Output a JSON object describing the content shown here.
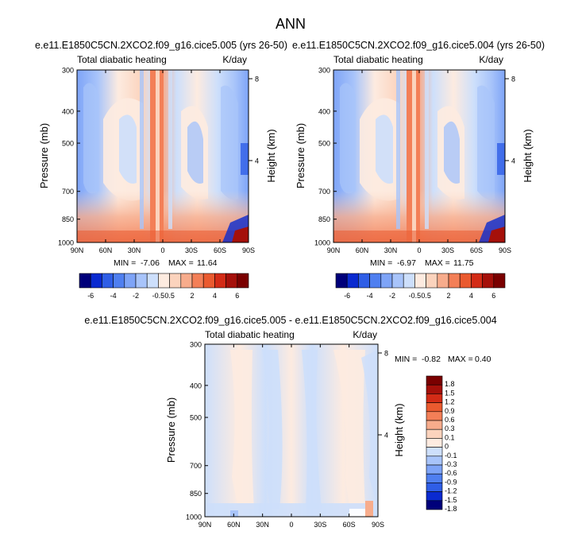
{
  "figure_title": "ANN",
  "colors": {
    "palette_main": [
      "#00007a",
      "#0a2ad0",
      "#2f5ee6",
      "#4f7ff0",
      "#7ea4f7",
      "#a8c4fa",
      "#cddffb",
      "#fdebe0",
      "#fbd3bd",
      "#f7ac8c",
      "#f37f57",
      "#ea5a2f",
      "#d32b16",
      "#a5100a",
      "#7a0000"
    ],
    "palette_diff": [
      "#7a0000",
      "#a5100a",
      "#d32b16",
      "#ea5a2f",
      "#f37f57",
      "#f7ac8c",
      "#fbd3bd",
      "#fdebe0",
      "#cddffb",
      "#a8c4fa",
      "#7ea4f7",
      "#4f7ff0",
      "#2f5ee6",
      "#0a2ad0",
      "#00007a"
    ]
  },
  "chart_data": [
    {
      "type": "heatmap",
      "title": "e.e11.E1850C5CN.2XCO2.f09_g16.cice5.005 (yrs 26-50)",
      "left_label": "Total diabatic heating",
      "right_label": "K/day",
      "xlabel": "",
      "ylabel": "Pressure (mb)",
      "y2label": "Height (km)",
      "x_ticks": [
        "90N",
        "60N",
        "30N",
        "0",
        "30S",
        "60S",
        "90S"
      ],
      "y_ticks": [
        "300",
        "400",
        "500",
        "700",
        "850",
        "1000"
      ],
      "y_tick_values": [
        300,
        400,
        500,
        700,
        850,
        1000
      ],
      "y2_ticks": [
        "8",
        "4"
      ],
      "y2_tick_values": [
        8,
        4
      ],
      "min_label": "MIN =",
      "min_value": "-7.06",
      "max_label": "MAX =",
      "max_value": "11.64",
      "colorbar_labels": [
        "-6",
        "-4",
        "-2",
        "-0.5",
        "0.5",
        "2",
        "4",
        "6"
      ]
    },
    {
      "type": "heatmap",
      "title": "e.e11.E1850C5CN.2XCO2.f09_g16.cice5.004 (yrs 26-50)",
      "left_label": "Total diabatic heating",
      "right_label": "K/day",
      "xlabel": "",
      "ylabel": "Pressure (mb)",
      "y2label": "Height (km)",
      "x_ticks": [
        "90N",
        "60N",
        "30N",
        "0",
        "30S",
        "60S",
        "90S"
      ],
      "y_ticks": [
        "300",
        "400",
        "500",
        "700",
        "850",
        "1000"
      ],
      "y_tick_values": [
        300,
        400,
        500,
        700,
        850,
        1000
      ],
      "y2_ticks": [
        "8",
        "4"
      ],
      "y2_tick_values": [
        8,
        4
      ],
      "min_label": "MIN =",
      "min_value": "-6.97",
      "max_label": "MAX =",
      "max_value": "11.75",
      "colorbar_labels": [
        "-6",
        "-4",
        "-2",
        "-0.5",
        "0.5",
        "2",
        "4",
        "6"
      ]
    },
    {
      "type": "heatmap",
      "title": "e.e11.E1850C5CN.2XCO2.f09_g16.cice5.005 - e.e11.E1850C5CN.2XCO2.f09_g16.cice5.004",
      "left_label": "Total diabatic heating",
      "right_label": "K/day",
      "xlabel": "",
      "ylabel": "Pressure (mb)",
      "y2label": "Height (km)",
      "x_ticks": [
        "90N",
        "60N",
        "30N",
        "0",
        "30S",
        "60S",
        "90S"
      ],
      "y_ticks": [
        "300",
        "400",
        "500",
        "700",
        "850",
        "1000"
      ],
      "y_tick_values": [
        300,
        400,
        500,
        700,
        850,
        1000
      ],
      "y2_ticks": [
        "8",
        "4"
      ],
      "y2_tick_values": [
        8,
        4
      ],
      "min_label": "MIN =",
      "min_value": "-0.82",
      "max_label": "MAX =",
      "max_value": "0.40",
      "colorbar_labels": [
        "1.8",
        "1.5",
        "1.2",
        "0.9",
        "0.6",
        "0.3",
        "0.1",
        "0",
        "-0.1",
        "-0.3",
        "-0.6",
        "-0.9",
        "-1.2",
        "-1.5",
        "-1.8"
      ]
    }
  ]
}
